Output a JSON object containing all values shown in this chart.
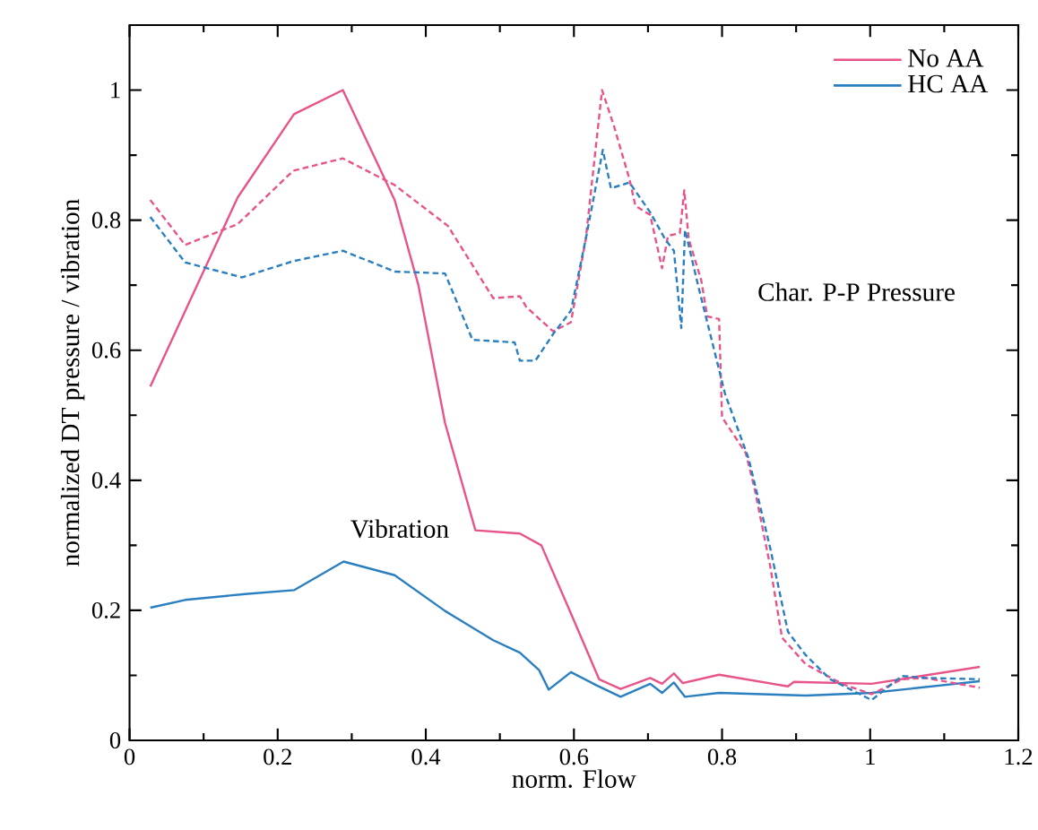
{
  "chart_data": {
    "type": "line",
    "xlabel": "norm. Flow",
    "ylabel": "normalized DT pressure / vibration",
    "xlim": [
      0,
      1.2
    ],
    "ylim": [
      0,
      1.1
    ],
    "xticks": [
      0,
      0.2,
      0.4,
      0.6,
      0.8,
      1,
      1.2
    ],
    "yticks": [
      0,
      0.2,
      0.4,
      0.6,
      0.8,
      1
    ],
    "legend": "top right",
    "grid": false,
    "annotations": [
      "Vibration",
      "Char. P-P Pressure"
    ],
    "series": [
      {
        "name": "No AA",
        "color": "#e8538a",
        "line_style": "solid",
        "x": [
          0.028,
          0.146,
          0.222,
          0.288,
          0.358,
          0.39,
          0.426,
          0.467,
          0.527,
          0.556,
          0.596,
          0.634,
          0.663,
          0.703,
          0.719,
          0.735,
          0.747,
          0.796,
          0.889,
          0.897,
          1.002,
          1.148
        ],
        "values": [
          0.544,
          0.835,
          0.963,
          1.0,
          0.831,
          0.7,
          0.488,
          0.323,
          0.318,
          0.3,
          0.195,
          0.094,
          0.079,
          0.096,
          0.087,
          0.103,
          0.088,
          0.101,
          0.083,
          0.09,
          0.087,
          0.113
        ]
      },
      {
        "name": "HC AA",
        "color": "#2a7fc0",
        "line_style": "solid",
        "x": [
          0.028,
          0.075,
          0.156,
          0.222,
          0.289,
          0.358,
          0.426,
          0.491,
          0.527,
          0.553,
          0.566,
          0.596,
          0.63,
          0.663,
          0.703,
          0.719,
          0.735,
          0.75,
          0.796,
          0.913,
          1.002,
          1.148
        ],
        "values": [
          0.204,
          0.216,
          0.225,
          0.231,
          0.275,
          0.254,
          0.199,
          0.154,
          0.135,
          0.108,
          0.078,
          0.105,
          0.085,
          0.067,
          0.087,
          0.073,
          0.089,
          0.067,
          0.073,
          0.069,
          0.073,
          0.091
        ]
      },
      {
        "color": "#e8538a",
        "line_style": "dashed",
        "x": [
          0.028,
          0.075,
          0.146,
          0.221,
          0.288,
          0.358,
          0.43,
          0.491,
          0.527,
          0.536,
          0.572,
          0.596,
          0.616,
          0.638,
          0.654,
          0.675,
          0.683,
          0.703,
          0.719,
          0.727,
          0.743,
          0.749,
          0.755,
          0.772,
          0.78,
          0.796,
          0.8,
          0.832,
          0.844,
          0.865,
          0.881,
          0.913,
          0.962,
          1.002,
          1.043,
          1.075,
          1.148
        ],
        "values": [
          0.831,
          0.762,
          0.794,
          0.876,
          0.895,
          0.854,
          0.791,
          0.68,
          0.683,
          0.666,
          0.629,
          0.643,
          0.771,
          1.0,
          0.945,
          0.863,
          0.822,
          0.808,
          0.726,
          0.776,
          0.78,
          0.846,
          0.771,
          0.707,
          0.652,
          0.648,
          0.497,
          0.442,
          0.387,
          0.268,
          0.158,
          0.117,
          0.087,
          0.071,
          0.094,
          0.096,
          0.081
        ]
      },
      {
        "color": "#2a7fc0",
        "line_style": "dashed",
        "x": [
          0.028,
          0.075,
          0.152,
          0.221,
          0.288,
          0.358,
          0.426,
          0.463,
          0.52,
          0.527,
          0.548,
          0.572,
          0.596,
          0.616,
          0.639,
          0.65,
          0.675,
          0.703,
          0.723,
          0.735,
          0.745,
          0.75,
          0.768,
          0.784,
          0.804,
          0.836,
          0.865,
          0.889,
          0.913,
          0.946,
          1.002,
          1.043,
          1.075,
          1.148
        ],
        "values": [
          0.805,
          0.735,
          0.712,
          0.737,
          0.753,
          0.721,
          0.718,
          0.616,
          0.612,
          0.584,
          0.584,
          0.625,
          0.661,
          0.771,
          0.908,
          0.849,
          0.858,
          0.812,
          0.771,
          0.753,
          0.634,
          0.785,
          0.698,
          0.625,
          0.533,
          0.433,
          0.296,
          0.167,
          0.131,
          0.094,
          0.062,
          0.099,
          0.096,
          0.094
        ]
      }
    ]
  }
}
